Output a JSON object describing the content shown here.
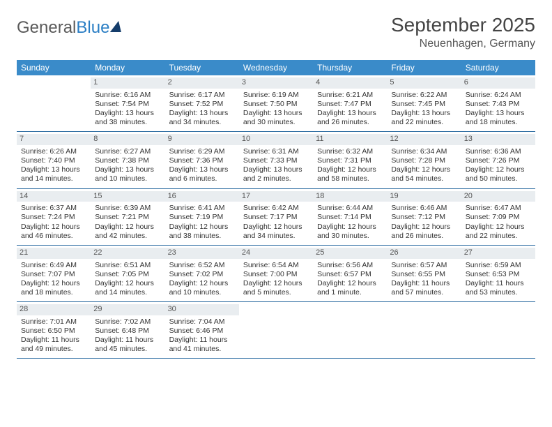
{
  "logo": {
    "text1": "General",
    "text2": "Blue"
  },
  "title": "September 2025",
  "location": "Neuenhagen, Germany",
  "day_headers": [
    "Sunday",
    "Monday",
    "Tuesday",
    "Wednesday",
    "Thursday",
    "Friday",
    "Saturday"
  ],
  "colors": {
    "header_blue": "#3a8bc9",
    "rule_blue": "#2f6ea3",
    "daynum_bg": "#e9edf0"
  },
  "weeks": [
    [
      {
        "num": "",
        "sunrise": "",
        "sunset": "",
        "daylight1": "",
        "daylight2": ""
      },
      {
        "num": "1",
        "sunrise": "Sunrise: 6:16 AM",
        "sunset": "Sunset: 7:54 PM",
        "daylight1": "Daylight: 13 hours",
        "daylight2": "and 38 minutes."
      },
      {
        "num": "2",
        "sunrise": "Sunrise: 6:17 AM",
        "sunset": "Sunset: 7:52 PM",
        "daylight1": "Daylight: 13 hours",
        "daylight2": "and 34 minutes."
      },
      {
        "num": "3",
        "sunrise": "Sunrise: 6:19 AM",
        "sunset": "Sunset: 7:50 PM",
        "daylight1": "Daylight: 13 hours",
        "daylight2": "and 30 minutes."
      },
      {
        "num": "4",
        "sunrise": "Sunrise: 6:21 AM",
        "sunset": "Sunset: 7:47 PM",
        "daylight1": "Daylight: 13 hours",
        "daylight2": "and 26 minutes."
      },
      {
        "num": "5",
        "sunrise": "Sunrise: 6:22 AM",
        "sunset": "Sunset: 7:45 PM",
        "daylight1": "Daylight: 13 hours",
        "daylight2": "and 22 minutes."
      },
      {
        "num": "6",
        "sunrise": "Sunrise: 6:24 AM",
        "sunset": "Sunset: 7:43 PM",
        "daylight1": "Daylight: 13 hours",
        "daylight2": "and 18 minutes."
      }
    ],
    [
      {
        "num": "7",
        "sunrise": "Sunrise: 6:26 AM",
        "sunset": "Sunset: 7:40 PM",
        "daylight1": "Daylight: 13 hours",
        "daylight2": "and 14 minutes."
      },
      {
        "num": "8",
        "sunrise": "Sunrise: 6:27 AM",
        "sunset": "Sunset: 7:38 PM",
        "daylight1": "Daylight: 13 hours",
        "daylight2": "and 10 minutes."
      },
      {
        "num": "9",
        "sunrise": "Sunrise: 6:29 AM",
        "sunset": "Sunset: 7:36 PM",
        "daylight1": "Daylight: 13 hours",
        "daylight2": "and 6 minutes."
      },
      {
        "num": "10",
        "sunrise": "Sunrise: 6:31 AM",
        "sunset": "Sunset: 7:33 PM",
        "daylight1": "Daylight: 13 hours",
        "daylight2": "and 2 minutes."
      },
      {
        "num": "11",
        "sunrise": "Sunrise: 6:32 AM",
        "sunset": "Sunset: 7:31 PM",
        "daylight1": "Daylight: 12 hours",
        "daylight2": "and 58 minutes."
      },
      {
        "num": "12",
        "sunrise": "Sunrise: 6:34 AM",
        "sunset": "Sunset: 7:28 PM",
        "daylight1": "Daylight: 12 hours",
        "daylight2": "and 54 minutes."
      },
      {
        "num": "13",
        "sunrise": "Sunrise: 6:36 AM",
        "sunset": "Sunset: 7:26 PM",
        "daylight1": "Daylight: 12 hours",
        "daylight2": "and 50 minutes."
      }
    ],
    [
      {
        "num": "14",
        "sunrise": "Sunrise: 6:37 AM",
        "sunset": "Sunset: 7:24 PM",
        "daylight1": "Daylight: 12 hours",
        "daylight2": "and 46 minutes."
      },
      {
        "num": "15",
        "sunrise": "Sunrise: 6:39 AM",
        "sunset": "Sunset: 7:21 PM",
        "daylight1": "Daylight: 12 hours",
        "daylight2": "and 42 minutes."
      },
      {
        "num": "16",
        "sunrise": "Sunrise: 6:41 AM",
        "sunset": "Sunset: 7:19 PM",
        "daylight1": "Daylight: 12 hours",
        "daylight2": "and 38 minutes."
      },
      {
        "num": "17",
        "sunrise": "Sunrise: 6:42 AM",
        "sunset": "Sunset: 7:17 PM",
        "daylight1": "Daylight: 12 hours",
        "daylight2": "and 34 minutes."
      },
      {
        "num": "18",
        "sunrise": "Sunrise: 6:44 AM",
        "sunset": "Sunset: 7:14 PM",
        "daylight1": "Daylight: 12 hours",
        "daylight2": "and 30 minutes."
      },
      {
        "num": "19",
        "sunrise": "Sunrise: 6:46 AM",
        "sunset": "Sunset: 7:12 PM",
        "daylight1": "Daylight: 12 hours",
        "daylight2": "and 26 minutes."
      },
      {
        "num": "20",
        "sunrise": "Sunrise: 6:47 AM",
        "sunset": "Sunset: 7:09 PM",
        "daylight1": "Daylight: 12 hours",
        "daylight2": "and 22 minutes."
      }
    ],
    [
      {
        "num": "21",
        "sunrise": "Sunrise: 6:49 AM",
        "sunset": "Sunset: 7:07 PM",
        "daylight1": "Daylight: 12 hours",
        "daylight2": "and 18 minutes."
      },
      {
        "num": "22",
        "sunrise": "Sunrise: 6:51 AM",
        "sunset": "Sunset: 7:05 PM",
        "daylight1": "Daylight: 12 hours",
        "daylight2": "and 14 minutes."
      },
      {
        "num": "23",
        "sunrise": "Sunrise: 6:52 AM",
        "sunset": "Sunset: 7:02 PM",
        "daylight1": "Daylight: 12 hours",
        "daylight2": "and 10 minutes."
      },
      {
        "num": "24",
        "sunrise": "Sunrise: 6:54 AM",
        "sunset": "Sunset: 7:00 PM",
        "daylight1": "Daylight: 12 hours",
        "daylight2": "and 5 minutes."
      },
      {
        "num": "25",
        "sunrise": "Sunrise: 6:56 AM",
        "sunset": "Sunset: 6:57 PM",
        "daylight1": "Daylight: 12 hours",
        "daylight2": "and 1 minute."
      },
      {
        "num": "26",
        "sunrise": "Sunrise: 6:57 AM",
        "sunset": "Sunset: 6:55 PM",
        "daylight1": "Daylight: 11 hours",
        "daylight2": "and 57 minutes."
      },
      {
        "num": "27",
        "sunrise": "Sunrise: 6:59 AM",
        "sunset": "Sunset: 6:53 PM",
        "daylight1": "Daylight: 11 hours",
        "daylight2": "and 53 minutes."
      }
    ],
    [
      {
        "num": "28",
        "sunrise": "Sunrise: 7:01 AM",
        "sunset": "Sunset: 6:50 PM",
        "daylight1": "Daylight: 11 hours",
        "daylight2": "and 49 minutes."
      },
      {
        "num": "29",
        "sunrise": "Sunrise: 7:02 AM",
        "sunset": "Sunset: 6:48 PM",
        "daylight1": "Daylight: 11 hours",
        "daylight2": "and 45 minutes."
      },
      {
        "num": "30",
        "sunrise": "Sunrise: 7:04 AM",
        "sunset": "Sunset: 6:46 PM",
        "daylight1": "Daylight: 11 hours",
        "daylight2": "and 41 minutes."
      },
      {
        "num": "",
        "sunrise": "",
        "sunset": "",
        "daylight1": "",
        "daylight2": ""
      },
      {
        "num": "",
        "sunrise": "",
        "sunset": "",
        "daylight1": "",
        "daylight2": ""
      },
      {
        "num": "",
        "sunrise": "",
        "sunset": "",
        "daylight1": "",
        "daylight2": ""
      },
      {
        "num": "",
        "sunrise": "",
        "sunset": "",
        "daylight1": "",
        "daylight2": ""
      }
    ]
  ]
}
